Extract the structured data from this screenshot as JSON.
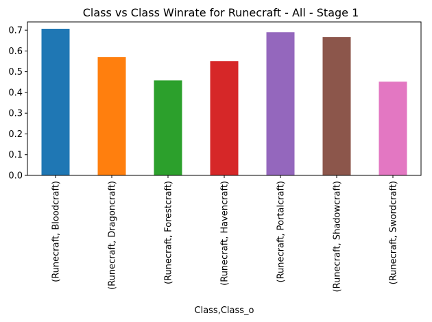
{
  "chart_data": {
    "type": "bar",
    "title": "Class vs Class Winrate for Runecraft - All - Stage 1",
    "xlabel": "Class,Class_o",
    "ylabel": "",
    "ylim": [
      0,
      0.74
    ],
    "yticks": [
      0.0,
      0.1,
      0.2,
      0.3,
      0.4,
      0.5,
      0.6,
      0.7
    ],
    "ytick_labels": [
      "0.0",
      "0.1",
      "0.2",
      "0.3",
      "0.4",
      "0.5",
      "0.6",
      "0.7"
    ],
    "categories": [
      "(Runecraft, Bloodcraft)",
      "(Runecraft, Dragoncraft)",
      "(Runecraft, Forestcraft)",
      "(Runecraft, Havencraft)",
      "(Runecraft, Portalcraft)",
      "(Runecraft, Shadowcraft)",
      "(Runecraft, Swordcraft)"
    ],
    "values": [
      0.707,
      0.571,
      0.458,
      0.551,
      0.69,
      0.667,
      0.452
    ],
    "colors": [
      "#1f77b4",
      "#ff7f0e",
      "#2ca02c",
      "#d62728",
      "#9467bd",
      "#8c564b",
      "#e377c2"
    ],
    "grid": false,
    "legend": "none"
  }
}
